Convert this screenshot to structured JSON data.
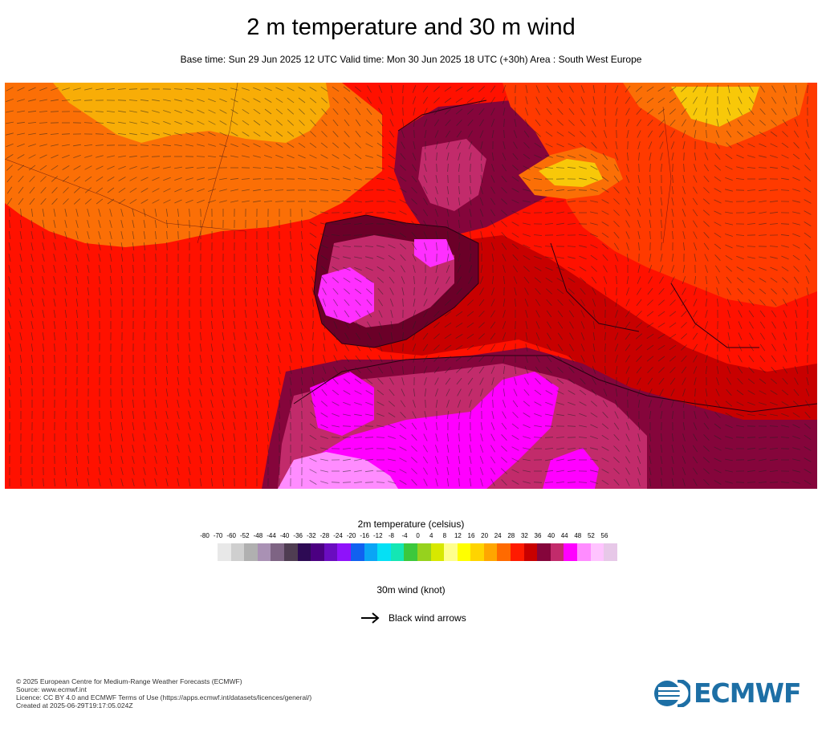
{
  "header": {
    "title": "2 m temperature and 30 m wind",
    "subtitle": "Base time: Sun 29 Jun 2025 12 UTC Valid time: Mon 30 Jun 2025 18 UTC (+30h) Area : South West Europe"
  },
  "map": {
    "area": "South West Europe",
    "field": "2m temperature (celsius)",
    "overlay": "30m wind (knot)",
    "regions": [
      {
        "name": "north-atlantic-orange",
        "color": "#fb6f06"
      },
      {
        "name": "north-atlantic-yellow",
        "color": "#f8ad07"
      },
      {
        "name": "central-atlantic-red",
        "color": "#ff1100"
      },
      {
        "name": "iberia-maroon",
        "color": "#6b0028"
      },
      {
        "name": "iberia-magenta",
        "color": "#c22b6b"
      },
      {
        "name": "iberia-hot-pink",
        "color": "#ff2fff"
      },
      {
        "name": "mediterranean-red",
        "color": "#c80000"
      },
      {
        "name": "alps-orange",
        "color": "#fb6f06"
      },
      {
        "name": "alps-yellow",
        "color": "#f8c809"
      },
      {
        "name": "sahara-magenta",
        "color": "#ff00ff"
      },
      {
        "name": "sahara-light-pink",
        "color": "#ff8cff"
      },
      {
        "name": "north-africa-maroon",
        "color": "#85053b"
      }
    ]
  },
  "legend": {
    "title": "2m temperature (celsius)",
    "ticks": [
      "-80",
      "-70",
      "-60",
      "-52",
      "-48",
      "-44",
      "-40",
      "-36",
      "-32",
      "-28",
      "-24",
      "-20",
      "-16",
      "-12",
      "-8",
      "-4",
      "0",
      "4",
      "8",
      "12",
      "16",
      "20",
      "24",
      "28",
      "32",
      "36",
      "40",
      "44",
      "48",
      "52",
      "56"
    ],
    "colors": [
      "#e8e8e8",
      "#cfcfcf",
      "#b0b0b0",
      "#a991b4",
      "#7e6484",
      "#4f3d52",
      "#2d0a54",
      "#4b0081",
      "#6a0cc0",
      "#8f12fa",
      "#1061f0",
      "#0aa5f5",
      "#05e0f5",
      "#14e6b4",
      "#3cc83c",
      "#96d21e",
      "#d7e800",
      "#ffff8c",
      "#ffff00",
      "#ffd400",
      "#ffa600",
      "#ff6a00",
      "#ff1b00",
      "#c80000",
      "#85053b",
      "#c22b6b",
      "#ff00ff",
      "#ff8cff",
      "#ffc4ff",
      "#e7c8e8",
      "#e8e8e8"
    ]
  },
  "wind": {
    "title": "30m wind (knot)",
    "arrow_label": "Black wind arrows"
  },
  "footer": {
    "lines": [
      "© 2025 European Centre for Medium-Range Weather Forecasts (ECMWF)",
      "Source: www.ecmwf.int",
      "Licence: CC BY 4.0 and ECMWF Terms of Use (https://apps.ecmwf.int/datasets/licences/general/)",
      "Created at 2025-06-29T19:17:05.024Z"
    ]
  },
  "logo": {
    "text": "ECMWF",
    "color": "#1d6fa5"
  }
}
